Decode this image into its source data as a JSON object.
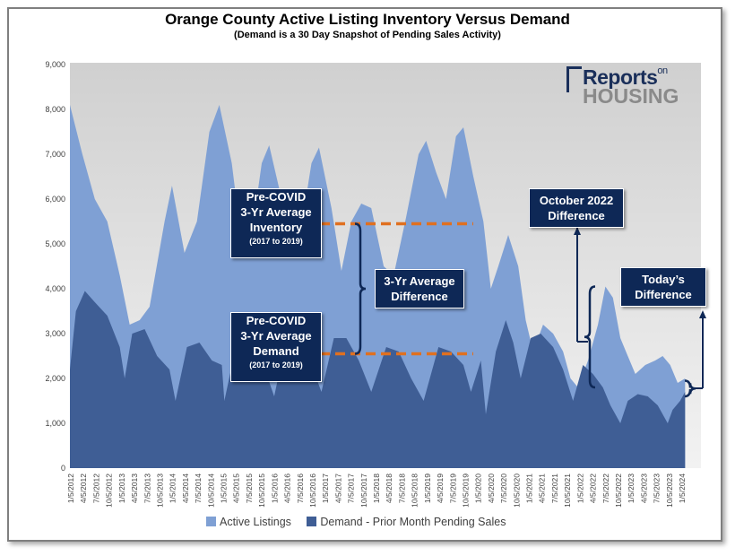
{
  "title": "Orange County Active Listing Inventory Versus Demand",
  "subtitle": "(Demand is a 30 Day Snapshot of Pending Sales Activity)",
  "logo": {
    "line1": "Reports",
    "line1_small": "on",
    "line2": "HOUSING"
  },
  "annotations": {
    "inventory_box": {
      "l1": "Pre-COVID",
      "l2": "3-Yr Average",
      "l3": "Inventory",
      "l4": "(2017 to 2019)"
    },
    "demand_box": {
      "l1": "Pre-COVID",
      "l2": "3-Yr Average",
      "l3": "Demand",
      "l4": "(2017 to 2019)"
    },
    "difference_box": {
      "l1": "3-Yr Average",
      "l2": "Difference"
    },
    "october_box": {
      "l1": "October 2022",
      "l2": "Difference"
    },
    "today_box": {
      "l1": "Today’s",
      "l2": "Difference"
    }
  },
  "colors": {
    "active": "#7fa0d4",
    "demand": "#3f5e95",
    "accent_box": "#0e2856",
    "dash": "#e07020"
  },
  "chart_data": {
    "type": "area",
    "title": "Orange County Active Listing Inventory Versus Demand",
    "subtitle": "(Demand is a 30 Day Snapshot of Pending Sales Activity)",
    "xlabel": "",
    "ylabel": "",
    "ylim": [
      0,
      9000
    ],
    "yticks": [
      "0",
      "1,000",
      "2,000",
      "3,000",
      "4,000",
      "5,000",
      "6,000",
      "7,000",
      "8,000",
      "9,000"
    ],
    "x_tick_labels": [
      "1/5/2012",
      "4/5/2012",
      "7/5/2012",
      "10/5/2012",
      "1/5/2013",
      "4/5/2013",
      "7/5/2013",
      "10/5/2013",
      "1/5/2014",
      "4/5/2014",
      "7/5/2014",
      "10/5/2014",
      "1/5/2015",
      "4/5/2015",
      "7/5/2015",
      "10/5/2015",
      "1/5/2016",
      "4/5/2016",
      "7/5/2016",
      "10/5/2016",
      "1/5/2017",
      "4/5/2017",
      "7/5/2017",
      "10/5/2017",
      "1/5/2018",
      "4/5/2018",
      "7/5/2018",
      "10/5/2018",
      "1/5/2019",
      "4/5/2019",
      "7/5/2019",
      "10/5/2019",
      "1/5/2020",
      "4/5/2020",
      "7/5/2020",
      "10/5/2020",
      "1/5/2021",
      "4/5/2021",
      "7/5/2021",
      "10/5/2021",
      "1/5/2022",
      "4/5/2022",
      "7/5/2022",
      "10/5/2022",
      "1/5/2023",
      "4/5/2023",
      "7/5/2023",
      "10/5/2023",
      "1/5/2024"
    ],
    "legend_position": "bottom",
    "grid": false,
    "pre_covid_avg_inventory": 5450,
    "pre_covid_avg_demand": 2550,
    "series": [
      {
        "name": "Active Listings",
        "points": [
          [
            2012.0,
            8100
          ],
          [
            2012.25,
            7000
          ],
          [
            2012.5,
            6000
          ],
          [
            2012.75,
            5500
          ],
          [
            2013.0,
            4300
          ],
          [
            2013.2,
            3200
          ],
          [
            2013.4,
            3300
          ],
          [
            2013.6,
            3600
          ],
          [
            2013.9,
            5500
          ],
          [
            2014.05,
            6300
          ],
          [
            2014.3,
            4800
          ],
          [
            2014.55,
            5500
          ],
          [
            2014.8,
            7500
          ],
          [
            2015.0,
            8100
          ],
          [
            2015.25,
            6800
          ],
          [
            2015.45,
            5000
          ],
          [
            2015.65,
            5200
          ],
          [
            2015.85,
            6800
          ],
          [
            2016.0,
            7200
          ],
          [
            2016.25,
            6000
          ],
          [
            2016.45,
            4800
          ],
          [
            2016.65,
            5400
          ],
          [
            2016.85,
            6800
          ],
          [
            2017.0,
            7150
          ],
          [
            2017.25,
            5800
          ],
          [
            2017.45,
            4400
          ],
          [
            2017.65,
            5500
          ],
          [
            2017.85,
            5900
          ],
          [
            2018.05,
            5800
          ],
          [
            2018.3,
            4500
          ],
          [
            2018.5,
            4300
          ],
          [
            2018.75,
            5600
          ],
          [
            2019.0,
            7000
          ],
          [
            2019.15,
            7300
          ],
          [
            2019.35,
            6600
          ],
          [
            2019.55,
            6000
          ],
          [
            2019.75,
            7400
          ],
          [
            2019.9,
            7600
          ],
          [
            2020.1,
            6500
          ],
          [
            2020.3,
            5500
          ],
          [
            2020.45,
            4000
          ],
          [
            2020.6,
            4500
          ],
          [
            2020.8,
            5200
          ],
          [
            2021.0,
            4500
          ],
          [
            2021.15,
            3300
          ],
          [
            2021.3,
            2600
          ],
          [
            2021.5,
            3200
          ],
          [
            2021.7,
            3000
          ],
          [
            2021.9,
            2600
          ],
          [
            2022.05,
            2000
          ],
          [
            2022.2,
            1800
          ],
          [
            2022.4,
            2400
          ],
          [
            2022.6,
            3200
          ],
          [
            2022.75,
            4050
          ],
          [
            2022.9,
            3800
          ],
          [
            2023.05,
            2900
          ],
          [
            2023.2,
            2500
          ],
          [
            2023.35,
            2100
          ],
          [
            2023.55,
            2300
          ],
          [
            2023.75,
            2400
          ],
          [
            2023.9,
            2500
          ],
          [
            2024.05,
            2300
          ],
          [
            2024.2,
            1900
          ],
          [
            2024.35,
            2000
          ]
        ]
      },
      {
        "name": "Demand - Prior Month Pending Sales",
        "points": [
          [
            2012.0,
            2200
          ],
          [
            2012.12,
            3500
          ],
          [
            2012.3,
            3950
          ],
          [
            2012.5,
            3700
          ],
          [
            2012.75,
            3400
          ],
          [
            2013.0,
            2700
          ],
          [
            2013.1,
            2000
          ],
          [
            2013.25,
            3000
          ],
          [
            2013.5,
            3100
          ],
          [
            2013.75,
            2500
          ],
          [
            2014.0,
            2200
          ],
          [
            2014.12,
            1500
          ],
          [
            2014.35,
            2700
          ],
          [
            2014.6,
            2800
          ],
          [
            2014.85,
            2400
          ],
          [
            2015.05,
            2300
          ],
          [
            2015.1,
            1500
          ],
          [
            2015.35,
            2800
          ],
          [
            2015.6,
            2900
          ],
          [
            2015.85,
            2400
          ],
          [
            2016.1,
            1600
          ],
          [
            2016.35,
            2900
          ],
          [
            2016.6,
            3000
          ],
          [
            2016.85,
            2300
          ],
          [
            2017.05,
            1700
          ],
          [
            2017.3,
            2900
          ],
          [
            2017.55,
            2900
          ],
          [
            2017.8,
            2400
          ],
          [
            2018.05,
            1700
          ],
          [
            2018.35,
            2700
          ],
          [
            2018.6,
            2600
          ],
          [
            2018.85,
            2000
          ],
          [
            2019.1,
            1500
          ],
          [
            2019.4,
            2700
          ],
          [
            2019.65,
            2600
          ],
          [
            2019.9,
            2300
          ],
          [
            2020.05,
            1700
          ],
          [
            2020.25,
            2400
          ],
          [
            2020.35,
            1200
          ],
          [
            2020.55,
            2600
          ],
          [
            2020.75,
            3300
          ],
          [
            2020.9,
            2800
          ],
          [
            2021.05,
            2000
          ],
          [
            2021.25,
            2900
          ],
          [
            2021.45,
            3000
          ],
          [
            2021.7,
            2700
          ],
          [
            2021.9,
            2200
          ],
          [
            2022.1,
            1500
          ],
          [
            2022.3,
            2300
          ],
          [
            2022.5,
            2100
          ],
          [
            2022.7,
            1800
          ],
          [
            2022.85,
            1400
          ],
          [
            2023.05,
            1000
          ],
          [
            2023.2,
            1500
          ],
          [
            2023.4,
            1650
          ],
          [
            2023.6,
            1600
          ],
          [
            2023.8,
            1400
          ],
          [
            2024.0,
            1000
          ],
          [
            2024.1,
            1300
          ],
          [
            2024.25,
            1500
          ],
          [
            2024.35,
            1700
          ]
        ]
      }
    ]
  }
}
